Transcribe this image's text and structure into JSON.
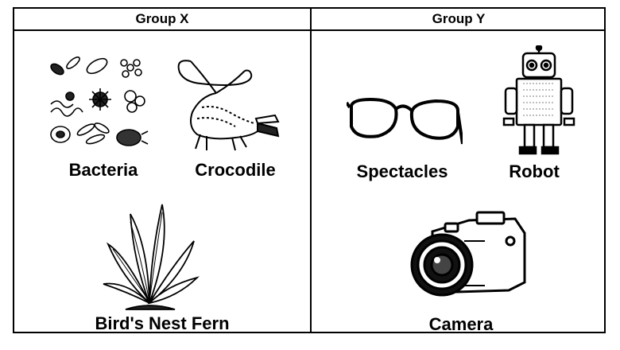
{
  "columns": [
    {
      "header": "Group X",
      "items": [
        {
          "label": "Bacteria",
          "icon": "bacteria-icon"
        },
        {
          "label": "Crocodile",
          "icon": "crocodile-icon"
        },
        {
          "label": "Bird's Nest Fern",
          "icon": "fern-icon"
        }
      ]
    },
    {
      "header": "Group Y",
      "items": [
        {
          "label": "Spectacles",
          "icon": "spectacles-icon"
        },
        {
          "label": "Robot",
          "icon": "robot-icon"
        },
        {
          "label": "Camera",
          "icon": "camera-icon"
        }
      ]
    }
  ],
  "colors": {
    "line": "#000000",
    "background": "#ffffff"
  }
}
